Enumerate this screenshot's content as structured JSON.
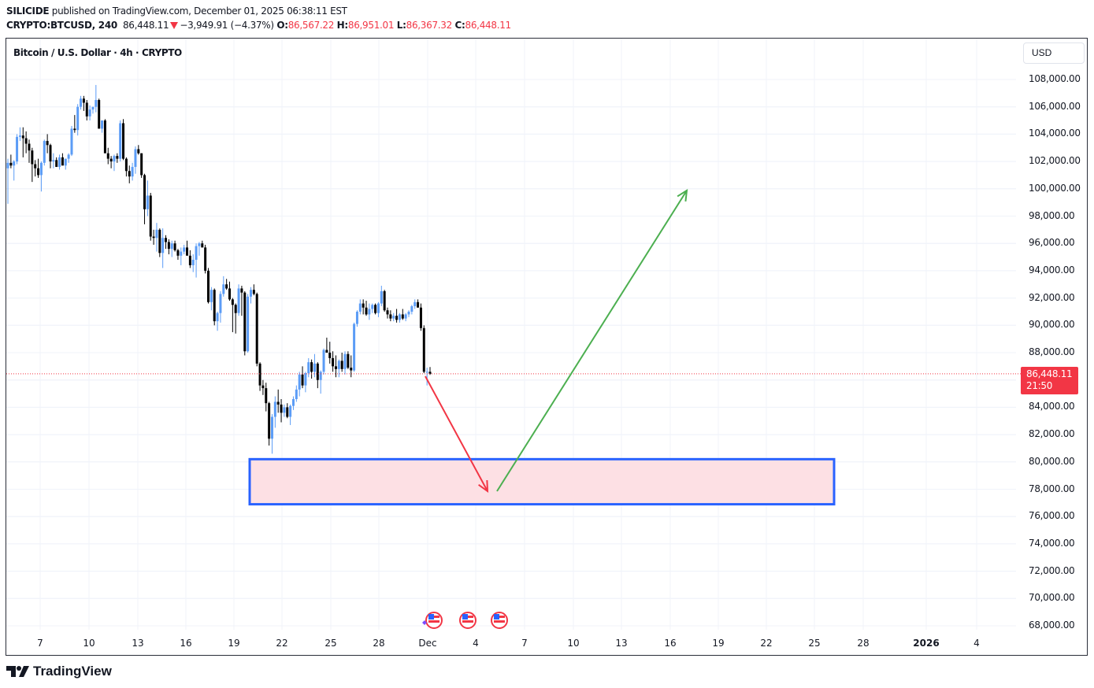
{
  "header": {
    "author": "SILICIDE",
    "published_text": " published on TradingView.com, December 01, 2025 06:38:11 EST",
    "symbol": "CRYPTO:BTCUSD, 240",
    "last": "86,448.11",
    "change": "−3,949.91 (−4.37%)",
    "o_label": "O:",
    "o_value": "86,567.22",
    "h_label": "H:",
    "h_value": "86,951.01",
    "l_label": "L:",
    "l_value": "86,367.32",
    "c_label": "C:",
    "c_value": "86,448.11"
  },
  "chart_title": "Bitcoin / U.S. Dollar · 4h · CRYPTO",
  "currency_button": "USD",
  "price_badge": {
    "price": "86,448.11",
    "countdown": "21:50",
    "color": "#f23645"
  },
  "y_axis": {
    "labels": [
      "108,000.00",
      "106,000.00",
      "104,000.00",
      "102,000.00",
      "100,000.00",
      "98,000.00",
      "96,000.00",
      "94,000.00",
      "92,000.00",
      "90,000.00",
      "88,000.00",
      "84,000.00",
      "82,000.00",
      "80,000.00",
      "78,000.00",
      "76,000.00",
      "74,000.00",
      "72,000.00",
      "70,000.00",
      "68,000.00"
    ],
    "values": [
      108000,
      106000,
      104000,
      102000,
      100000,
      98000,
      96000,
      94000,
      92000,
      90000,
      88000,
      84000,
      82000,
      80000,
      78000,
      76000,
      74000,
      72000,
      70000,
      68000
    ]
  },
  "x_axis": {
    "labels": [
      "7",
      "10",
      "13",
      "16",
      "19",
      "22",
      "25",
      "28",
      "Dec",
      "4",
      "7",
      "10",
      "13",
      "16",
      "19",
      "22",
      "25",
      "28",
      "2026",
      "4"
    ],
    "positions": [
      51,
      113,
      175,
      236,
      297,
      358,
      420,
      481,
      543,
      604,
      666,
      728,
      789,
      851,
      912,
      973,
      1034,
      1096,
      1176,
      1240
    ]
  },
  "logo_text": "TradingView",
  "colors": {
    "up": "#5b9cf6",
    "down": "#000000",
    "zone_fill": "#fde0e4",
    "zone_border": "#2962ff",
    "arrow_down": "#f23645",
    "arrow_up": "#4caf50",
    "last_price_line": "#f23645",
    "grid": "#f0f3fa"
  },
  "event_icons": [
    "us-flag-icon",
    "us-flag-icon",
    "us-flag-icon"
  ],
  "chart_data": {
    "type": "candlestick",
    "title": "Bitcoin / U.S. Dollar · 4h · CRYPTO",
    "xlabel": "",
    "ylabel": "USD",
    "ylim": [
      67000,
      110000
    ],
    "grid": true,
    "timeframe": "4h",
    "last_price": 86448.11,
    "ohlc_thousands": [
      [
        101.5,
        102.2,
        98.9,
        101.9
      ],
      [
        101.9,
        102.5,
        101.5,
        101.7
      ],
      [
        101.7,
        102.1,
        100.6,
        102.0
      ],
      [
        102.0,
        104.0,
        101.8,
        103.8
      ],
      [
        103.8,
        104.5,
        103.5,
        103.9
      ],
      [
        103.9,
        104.5,
        102.3,
        103.7
      ],
      [
        103.7,
        104.2,
        102.6,
        103.3
      ],
      [
        103.3,
        103.6,
        101.9,
        102.8
      ],
      [
        102.8,
        103.0,
        100.5,
        101.8
      ],
      [
        101.8,
        102.1,
        100.9,
        101.5
      ],
      [
        101.5,
        102.2,
        100.8,
        101.0
      ],
      [
        101.0,
        102.0,
        99.8,
        101.9
      ],
      [
        101.9,
        103.6,
        101.7,
        103.5
      ],
      [
        103.5,
        104.0,
        102.6,
        103.2
      ],
      [
        103.2,
        103.3,
        101.5,
        102.0
      ],
      [
        102.0,
        102.6,
        101.5,
        102.1
      ],
      [
        102.1,
        102.3,
        101.6,
        101.6
      ],
      [
        101.6,
        102.5,
        101.4,
        102.3
      ],
      [
        102.3,
        102.6,
        101.8,
        101.7
      ],
      [
        101.7,
        102.2,
        101.4,
        102.2
      ],
      [
        102.2,
        102.6,
        101.9,
        102.5
      ],
      [
        102.5,
        104.6,
        102.4,
        104.4
      ],
      [
        104.4,
        105.4,
        104.1,
        104.3
      ],
      [
        104.3,
        106.2,
        103.9,
        106.0
      ],
      [
        106.0,
        106.8,
        105.8,
        106.6
      ],
      [
        106.6,
        106.8,
        105.7,
        106.3
      ],
      [
        106.3,
        106.5,
        105.0,
        105.3
      ],
      [
        105.3,
        106.1,
        105.0,
        105.8
      ],
      [
        105.8,
        106.0,
        105.5,
        106.0
      ],
      [
        106.0,
        107.6,
        105.6,
        106.5
      ],
      [
        106.5,
        106.6,
        104.4,
        104.4
      ],
      [
        104.4,
        105.0,
        104.1,
        105.0
      ],
      [
        105.0,
        105.1,
        102.6,
        102.6
      ],
      [
        102.6,
        103.0,
        101.8,
        102.2
      ],
      [
        102.2,
        102.4,
        101.5,
        102.0
      ],
      [
        102.0,
        102.5,
        101.3,
        102.4
      ],
      [
        102.4,
        102.6,
        101.9,
        102.2
      ],
      [
        102.2,
        105.0,
        102.0,
        104.8
      ],
      [
        104.8,
        105.1,
        102.1,
        102.2
      ],
      [
        102.2,
        102.3,
        100.9,
        101.3
      ],
      [
        101.3,
        101.7,
        100.4,
        100.9
      ],
      [
        100.9,
        101.9,
        100.6,
        101.6
      ],
      [
        101.6,
        103.1,
        101.1,
        102.9
      ],
      [
        102.9,
        103.2,
        102.5,
        102.6
      ],
      [
        102.6,
        102.6,
        100.8,
        101.0
      ],
      [
        101.0,
        101.1,
        97.4,
        98.5
      ],
      [
        98.5,
        100.6,
        98.0,
        99.5
      ],
      [
        99.5,
        99.7,
        96.2,
        96.5
      ],
      [
        96.5,
        97.0,
        95.9,
        96.4
      ],
      [
        96.4,
        97.5,
        95.4,
        97.0
      ],
      [
        97.0,
        97.1,
        95.0,
        95.3
      ],
      [
        95.3,
        97.1,
        94.2,
        96.4
      ],
      [
        96.4,
        96.6,
        95.6,
        96.1
      ],
      [
        96.1,
        96.3,
        95.2,
        95.6
      ],
      [
        95.6,
        96.2,
        95.0,
        96.0
      ],
      [
        96.0,
        96.2,
        95.4,
        95.5
      ],
      [
        95.5,
        95.6,
        94.8,
        95.1
      ],
      [
        95.1,
        95.7,
        94.4,
        95.4
      ],
      [
        95.4,
        95.9,
        95.2,
        95.7
      ],
      [
        95.7,
        96.2,
        95.5,
        95.1
      ],
      [
        95.1,
        95.5,
        94.2,
        94.4
      ],
      [
        94.4,
        95.2,
        93.9,
        94.8
      ],
      [
        94.8,
        96.0,
        93.5,
        95.8
      ],
      [
        95.8,
        96.1,
        95.1,
        96.0
      ],
      [
        96.0,
        96.2,
        95.8,
        95.7
      ],
      [
        95.7,
        95.9,
        93.8,
        94.0
      ],
      [
        94.0,
        94.2,
        91.6,
        91.7
      ],
      [
        91.7,
        92.8,
        91.1,
        92.6
      ],
      [
        92.6,
        92.7,
        90.0,
        90.3
      ],
      [
        90.3,
        91.0,
        89.6,
        90.9
      ],
      [
        90.9,
        92.5,
        90.2,
        92.3
      ],
      [
        92.3,
        93.6,
        92.1,
        93.0
      ],
      [
        93.0,
        93.4,
        92.6,
        92.7
      ],
      [
        92.7,
        93.2,
        91.8,
        91.9
      ],
      [
        91.9,
        92.0,
        89.5,
        91.5
      ],
      [
        91.5,
        91.6,
        89.4,
        90.9
      ],
      [
        90.9,
        93.0,
        90.7,
        92.7
      ],
      [
        92.7,
        92.9,
        90.7,
        92.4
      ],
      [
        92.4,
        92.5,
        87.8,
        88.1
      ],
      [
        88.1,
        92.3,
        88.0,
        92.1
      ],
      [
        92.1,
        92.8,
        91.6,
        92.6
      ],
      [
        92.6,
        93.0,
        92.2,
        92.3
      ],
      [
        92.3,
        92.4,
        87.0,
        87.2
      ],
      [
        87.2,
        87.3,
        85.2,
        85.6
      ],
      [
        85.6,
        86.0,
        84.9,
        85.4
      ],
      [
        85.4,
        85.8,
        83.7,
        84.3
      ],
      [
        84.3,
        84.4,
        81.2,
        81.7
      ],
      [
        81.7,
        83.5,
        80.6,
        83.3
      ],
      [
        83.3,
        84.8,
        82.5,
        84.4
      ],
      [
        84.4,
        85.3,
        83.6,
        84.2
      ],
      [
        84.2,
        84.6,
        82.9,
        83.6
      ],
      [
        83.6,
        84.2,
        83.3,
        84.0
      ],
      [
        84.0,
        84.3,
        83.2,
        83.3
      ],
      [
        83.3,
        84.2,
        82.7,
        84.1
      ],
      [
        84.1,
        84.8,
        83.8,
        84.6
      ],
      [
        84.6,
        85.6,
        84.4,
        85.3
      ],
      [
        85.3,
        86.6,
        84.8,
        86.4
      ],
      [
        86.4,
        87.0,
        85.4,
        85.6
      ],
      [
        85.6,
        86.6,
        85.1,
        86.5
      ],
      [
        86.5,
        87.6,
        86.2,
        87.3
      ],
      [
        87.3,
        87.5,
        86.1,
        86.6
      ],
      [
        86.6,
        87.9,
        86.2,
        87.2
      ],
      [
        87.2,
        87.3,
        85.4,
        86.0
      ],
      [
        86.0,
        86.7,
        85.0,
        86.6
      ],
      [
        86.6,
        88.3,
        86.4,
        88.2
      ],
      [
        88.2,
        89.1,
        88.1,
        88.0
      ],
      [
        88.0,
        88.8,
        87.2,
        87.6
      ],
      [
        87.6,
        88.1,
        86.6,
        87.0
      ],
      [
        87.0,
        87.8,
        86.2,
        86.8
      ],
      [
        86.8,
        87.5,
        86.2,
        87.4
      ],
      [
        87.4,
        88.0,
        86.6,
        86.8
      ],
      [
        86.8,
        88.1,
        86.4,
        87.9
      ],
      [
        87.9,
        88.1,
        86.8,
        86.9
      ],
      [
        86.9,
        87.8,
        86.2,
        86.7
      ],
      [
        86.7,
        90.2,
        86.6,
        90.1
      ],
      [
        90.1,
        91.1,
        89.9,
        91.0
      ],
      [
        91.0,
        91.9,
        90.8,
        91.6
      ],
      [
        91.6,
        91.9,
        90.8,
        91.3
      ],
      [
        91.3,
        91.8,
        90.7,
        90.8
      ],
      [
        90.8,
        91.6,
        90.4,
        91.2
      ],
      [
        91.2,
        91.6,
        90.9,
        91.5
      ],
      [
        91.5,
        91.6,
        90.8,
        90.9
      ],
      [
        90.9,
        91.7,
        90.6,
        91.6
      ],
      [
        91.6,
        92.9,
        91.4,
        92.5
      ],
      [
        92.5,
        92.6,
        91.0,
        91.1
      ],
      [
        91.1,
        91.3,
        90.5,
        90.8
      ],
      [
        90.8,
        91.1,
        90.3,
        90.5
      ],
      [
        90.5,
        90.9,
        90.3,
        90.7
      ],
      [
        90.7,
        91.2,
        90.2,
        90.4
      ],
      [
        90.4,
        90.9,
        90.2,
        90.8
      ],
      [
        90.8,
        91.2,
        90.4,
        90.5
      ],
      [
        90.5,
        90.9,
        90.3,
        90.8
      ],
      [
        90.8,
        91.1,
        90.6,
        91.0
      ],
      [
        91.0,
        91.5,
        90.8,
        91.4
      ],
      [
        91.4,
        91.9,
        91.2,
        91.7
      ],
      [
        91.7,
        91.9,
        91.3,
        91.3
      ],
      [
        91.3,
        91.6,
        89.6,
        89.8
      ],
      [
        89.8,
        90.0,
        86.5,
        86.6
      ],
      [
        86.6,
        86.9,
        85.6,
        86.6
      ],
      [
        86.6,
        86.95,
        86.37,
        86.45
      ]
    ]
  },
  "annotations": {
    "zone": {
      "type": "rectangle",
      "price_top": 80200,
      "price_bottom": 76900
    },
    "arrow_down": {
      "from_price": 86300,
      "to_price": 77900
    },
    "arrow_up": {
      "from_price": 77900,
      "to_price": 99600
    }
  }
}
